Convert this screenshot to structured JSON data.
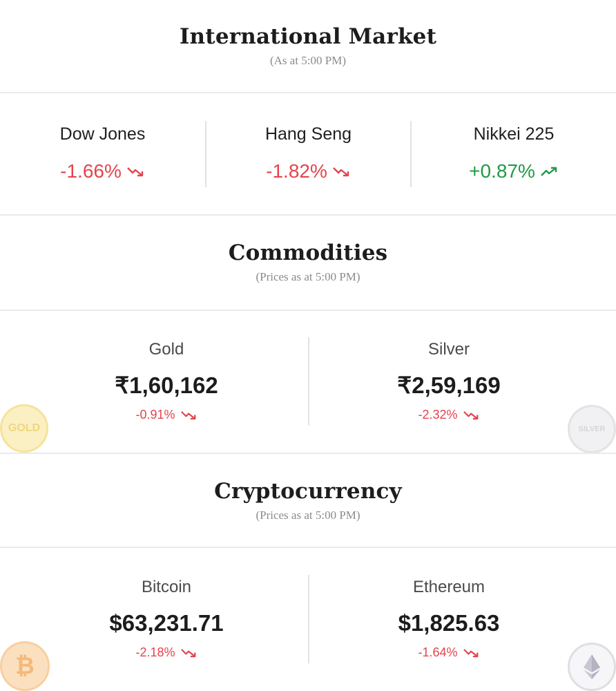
{
  "international": {
    "title": "International Market",
    "subtitle": "(As at 5:00 PM)",
    "indices": [
      {
        "name": "Dow Jones",
        "change": "-1.66%",
        "direction": "down"
      },
      {
        "name": "Hang Seng",
        "change": "-1.82%",
        "direction": "down"
      },
      {
        "name": "Nikkei 225",
        "change": "+0.87%",
        "direction": "up"
      }
    ]
  },
  "commodities": {
    "title": "Commodities",
    "subtitle": "(Prices as at 5:00 PM)",
    "items": [
      {
        "name": "Gold",
        "price": "₹1,60,162",
        "change": "-0.91%",
        "direction": "down",
        "coin_label": "GOLD",
        "coin_color": "#f3d45a"
      },
      {
        "name": "Silver",
        "price": "₹2,59,169",
        "change": "-2.32%",
        "direction": "down",
        "coin_label": "SILVER",
        "coin_color": "#c9c9cc"
      }
    ]
  },
  "crypto": {
    "title": "Cryptocurrency",
    "subtitle": "(Prices as at 5:00 PM)",
    "items": [
      {
        "name": "Bitcoin",
        "price": "$63,231.71",
        "change": "-2.18%",
        "direction": "down",
        "coin_label": "₿",
        "coin_color": "#f2a13a"
      },
      {
        "name": "Ethereum",
        "price": "$1,825.63",
        "change": "-1.64%",
        "direction": "down",
        "coin_label": "ethereum-icon",
        "coin_color": "#b9b9c4"
      }
    ]
  },
  "colors": {
    "negative": "#e5434d",
    "positive": "#1f9a47",
    "divider": "#e9e9ee"
  },
  "icons": {
    "down": "trend-down-icon",
    "up": "trend-up-icon"
  }
}
